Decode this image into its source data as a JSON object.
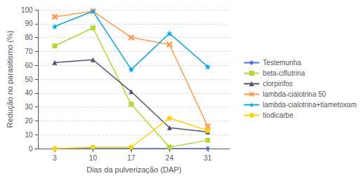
{
  "chart_data": {
    "type": "line",
    "x": [
      3,
      10,
      17,
      24,
      31
    ],
    "series": [
      {
        "name": "Testemunha",
        "values": [
          0,
          0,
          0,
          0,
          0
        ],
        "marker": "diamond"
      },
      {
        "name": "beta-ciflutrina",
        "values": [
          74,
          87,
          32,
          1,
          6
        ],
        "marker": "square"
      },
      {
        "name": "clorpirifos",
        "values": [
          62,
          64,
          41,
          15,
          12
        ],
        "marker": "triangle"
      },
      {
        "name": "lambda-cialotrina 50",
        "values": [
          95,
          99,
          80,
          75,
          16
        ],
        "marker": "x"
      },
      {
        "name": "lambda-cialotrina+tiametoxam",
        "values": [
          88,
          99,
          57,
          83,
          59
        ],
        "marker": "star"
      },
      {
        "name": "tiodicarbe",
        "values": [
          0,
          1,
          1,
          22,
          13
        ],
        "marker": "circle"
      }
    ],
    "xlabel": "Dias da pulverização (DAP)",
    "ylabel": "Redução no parasitismo (%)",
    "xlim": [
      0,
      35
    ],
    "xticks": [
      3,
      10,
      17,
      24,
      31
    ],
    "ylim": [
      0,
      100
    ],
    "yticks": [
      0,
      10,
      20,
      30,
      40,
      50,
      60,
      70,
      80,
      90,
      100
    ],
    "grid": "y",
    "legend": "right",
    "line_style": "solid"
  }
}
